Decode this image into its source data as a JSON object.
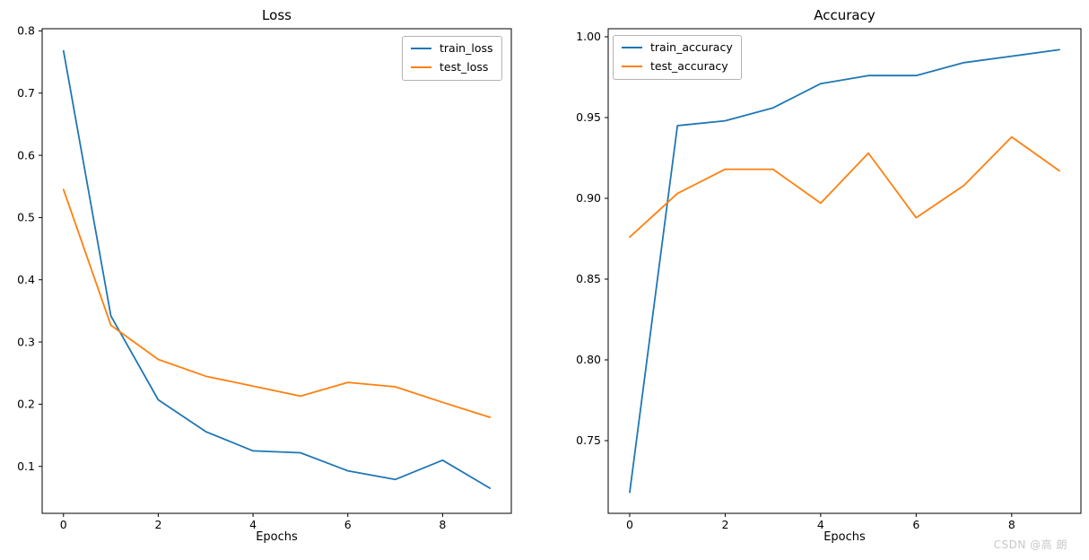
{
  "watermark": "CSDN @高 朗",
  "colors": {
    "train": "#1f77b4",
    "test": "#ff7f0e",
    "spine": "#000000",
    "tick_label": "#000000",
    "watermark": "#c8c8c8"
  },
  "chart_data": [
    {
      "type": "line",
      "title": "Loss",
      "xlabel": "Epochs",
      "ylabel": "",
      "grid": false,
      "legend_position": "upper-right",
      "x": [
        0,
        1,
        2,
        3,
        4,
        5,
        6,
        7,
        8,
        9
      ],
      "series": [
        {
          "name": "train_loss",
          "color": "#1f77b4",
          "values": [
            0.768,
            0.342,
            0.207,
            0.156,
            0.125,
            0.122,
            0.093,
            0.079,
            0.11,
            0.065
          ]
        },
        {
          "name": "test_loss",
          "color": "#ff7f0e",
          "values": [
            0.545,
            0.327,
            0.272,
            0.245,
            0.229,
            0.213,
            0.235,
            0.228,
            0.203,
            0.179
          ]
        }
      ],
      "xlim": [
        -0.45,
        9.45
      ],
      "ylim": [
        0.0246,
        0.8035
      ],
      "xticks": [
        0,
        2,
        4,
        6,
        8
      ],
      "xtick_labels": [
        "0",
        "2",
        "4",
        "6",
        "8"
      ],
      "yticks": [
        0.1,
        0.2,
        0.3,
        0.4,
        0.5,
        0.6,
        0.7,
        0.8
      ],
      "ytick_labels": [
        "0.1",
        "0.2",
        "0.3",
        "0.4",
        "0.5",
        "0.6",
        "0.7",
        "0.8"
      ]
    },
    {
      "type": "line",
      "title": "Accuracy",
      "xlabel": "Epochs",
      "ylabel": "",
      "grid": false,
      "legend_position": "upper-left",
      "x": [
        0,
        1,
        2,
        3,
        4,
        5,
        6,
        7,
        8,
        9
      ],
      "series": [
        {
          "name": "train_accuracy",
          "color": "#1f77b4",
          "values": [
            0.718,
            0.945,
            0.948,
            0.956,
            0.971,
            0.976,
            0.976,
            0.984,
            0.988,
            0.992
          ]
        },
        {
          "name": "test_accuracy",
          "color": "#ff7f0e",
          "values": [
            0.876,
            0.903,
            0.918,
            0.918,
            0.897,
            0.928,
            0.888,
            0.908,
            0.938,
            0.917
          ]
        }
      ],
      "xlim": [
        -0.45,
        9.45
      ],
      "ylim": [
        0.705,
        1.005
      ],
      "xticks": [
        0,
        2,
        4,
        6,
        8
      ],
      "xtick_labels": [
        "0",
        "2",
        "4",
        "6",
        "8"
      ],
      "yticks": [
        0.75,
        0.8,
        0.85,
        0.9,
        0.95,
        1.0
      ],
      "ytick_labels": [
        "0.75",
        "0.80",
        "0.85",
        "0.90",
        "0.95",
        "1.00"
      ]
    }
  ]
}
